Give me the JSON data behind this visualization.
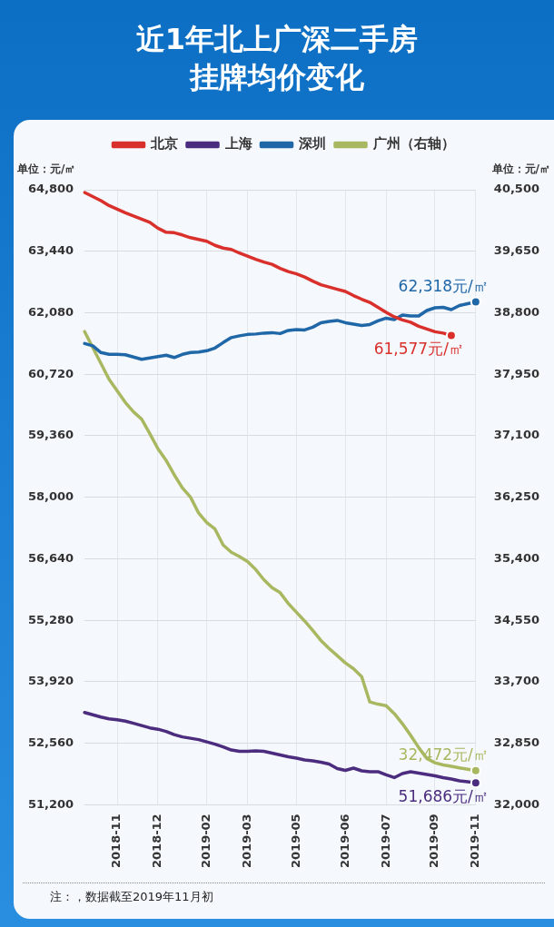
{
  "chart_data": {
    "type": "line",
    "title": "近1年北上广深二手房挂牌均价变化",
    "ylabel": "单位：元/㎡",
    "y2label": "单位：元/㎡",
    "categories": [
      null,
      null,
      null,
      null,
      "2018-11",
      null,
      null,
      null,
      null,
      "2018-12",
      null,
      null,
      null,
      null,
      null,
      "2019-02",
      null,
      null,
      null,
      null,
      "2019-03",
      null,
      null,
      null,
      null,
      null,
      "2019-05",
      null,
      null,
      null,
      null,
      null,
      "2019-06",
      null,
      null,
      null,
      null,
      "2019-07",
      null,
      null,
      null,
      null,
      null,
      "2019-09",
      null,
      null,
      null,
      null,
      "2019-11"
    ],
    "series": [
      {
        "name": "北京",
        "color": "#d9302c",
        "values": [
          64740,
          64650,
          64560,
          64450,
          64370,
          64290,
          64220,
          64150,
          64080,
          63950,
          63860,
          63850,
          63800,
          63740,
          63700,
          63660,
          63570,
          63510,
          63480,
          63400,
          63330,
          63260,
          63200,
          63150,
          63060,
          62990,
          62940,
          62870,
          62780,
          62700,
          62650,
          62600,
          62550,
          62460,
          62380,
          62310,
          62200,
          62090,
          61990,
          61920,
          61870,
          61780,
          61720,
          61660,
          61630,
          61577,
          null,
          null,
          null
        ],
        "value_labels": [
          null,
          null,
          null,
          null,
          null,
          null,
          null,
          null,
          null,
          null,
          null,
          null,
          null,
          null,
          null,
          null,
          null,
          null,
          null,
          null,
          null,
          null,
          null,
          null,
          null,
          null,
          null,
          null,
          null,
          null,
          null,
          null,
          null,
          null,
          null,
          null,
          null,
          null,
          null,
          null,
          null,
          null,
          null,
          null,
          null,
          "61,577元/㎡",
          null,
          null,
          null
        ]
      },
      {
        "name": "上海",
        "color": "#4b2c7f",
        "values": [
          53240,
          53190,
          53140,
          53100,
          53080,
          53050,
          53000,
          52950,
          52900,
          52870,
          52820,
          52750,
          52700,
          52670,
          52640,
          52590,
          52540,
          52480,
          52410,
          52380,
          52380,
          52390,
          52380,
          52340,
          52300,
          52260,
          52230,
          52190,
          52170,
          52140,
          52100,
          52000,
          51960,
          52010,
          51950,
          51930,
          51930,
          51860,
          51800,
          51890,
          51930,
          51900,
          51870,
          51840,
          51800,
          51770,
          51730,
          51710,
          51686
        ],
        "value_labels": [
          null,
          null,
          null,
          null,
          null,
          null,
          null,
          null,
          null,
          null,
          null,
          null,
          null,
          null,
          null,
          null,
          null,
          null,
          null,
          null,
          null,
          null,
          null,
          null,
          null,
          null,
          null,
          null,
          null,
          null,
          null,
          null,
          null,
          null,
          null,
          null,
          null,
          null,
          null,
          null,
          null,
          null,
          null,
          null,
          null,
          null,
          null,
          null,
          "51,686元/㎡"
        ]
      },
      {
        "name": "深圳",
        "color": "#2067a8",
        "values": [
          61400,
          61350,
          61200,
          61160,
          61160,
          61150,
          61100,
          61050,
          61080,
          61110,
          61140,
          61090,
          61160,
          61200,
          61210,
          61240,
          61300,
          61420,
          61530,
          61570,
          61600,
          61610,
          61630,
          61640,
          61620,
          61690,
          61710,
          61700,
          61760,
          61860,
          61890,
          61910,
          61860,
          61830,
          61800,
          61820,
          61900,
          61960,
          61930,
          62030,
          62010,
          62010,
          62130,
          62190,
          62200,
          62150,
          62240,
          62280,
          62318
        ],
        "value_labels": [
          null,
          null,
          null,
          null,
          null,
          null,
          null,
          null,
          null,
          null,
          null,
          null,
          null,
          null,
          null,
          null,
          null,
          null,
          null,
          null,
          null,
          null,
          null,
          null,
          null,
          null,
          null,
          null,
          null,
          null,
          null,
          null,
          null,
          null,
          null,
          null,
          null,
          null,
          null,
          null,
          null,
          null,
          null,
          null,
          null,
          null,
          null,
          null,
          "62,318元/㎡"
        ]
      },
      {
        "name": "广州（右轴）",
        "color": "#a8b860",
        "axis": "y2",
        "values": [
          38540,
          38320,
          38100,
          37880,
          37720,
          37560,
          37430,
          37330,
          37130,
          36920,
          36760,
          36560,
          36380,
          36250,
          36030,
          35900,
          35810,
          35590,
          35490,
          35430,
          35360,
          35250,
          35110,
          35000,
          34930,
          34780,
          34660,
          34540,
          34410,
          34270,
          34160,
          34060,
          33960,
          33880,
          33770,
          33420,
          33390,
          33370,
          33260,
          33120,
          32960,
          32790,
          32640,
          32580,
          32550,
          32530,
          32510,
          32490,
          32472
        ],
        "value_labels": [
          null,
          null,
          null,
          null,
          null,
          null,
          null,
          null,
          null,
          null,
          null,
          null,
          null,
          null,
          null,
          null,
          null,
          null,
          null,
          null,
          null,
          null,
          null,
          null,
          null,
          null,
          null,
          null,
          null,
          null,
          null,
          null,
          null,
          null,
          null,
          null,
          null,
          null,
          null,
          null,
          null,
          null,
          null,
          null,
          null,
          null,
          null,
          null,
          "32,472元/㎡"
        ]
      }
    ],
    "ylim": [
      51200,
      64800
    ],
    "yticks": [
      {
        "value": 51200,
        "label": "51,200"
      },
      {
        "value": 52560,
        "label": "52,560"
      },
      {
        "value": 53920,
        "label": "53,920"
      },
      {
        "value": 55280,
        "label": "55,280"
      },
      {
        "value": 56640,
        "label": "56,640"
      },
      {
        "value": 58000,
        "label": "58,000"
      },
      {
        "value": 59360,
        "label": "59,360"
      },
      {
        "value": 60720,
        "label": "60,720"
      },
      {
        "value": 62080,
        "label": "62,080"
      },
      {
        "value": 63440,
        "label": "63,440"
      },
      {
        "value": 64800,
        "label": "64,800"
      }
    ],
    "y2lim": [
      32000,
      40500
    ],
    "y2ticks": [
      {
        "value": 32000,
        "label": "32,000"
      },
      {
        "value": 32850,
        "label": "32,850"
      },
      {
        "value": 33700,
        "label": "33,700"
      },
      {
        "value": 34550,
        "label": "34,550"
      },
      {
        "value": 35400,
        "label": "35,400"
      },
      {
        "value": 36250,
        "label": "36,250"
      },
      {
        "value": 37100,
        "label": "37,100"
      },
      {
        "value": 37950,
        "label": "37,950"
      },
      {
        "value": 38800,
        "label": "38,800"
      },
      {
        "value": 39650,
        "label": "39,650"
      },
      {
        "value": 40500,
        "label": "40,500"
      }
    ],
    "grid": true,
    "legend": "top",
    "annotations": [
      "注：，数据截至2019年11月初"
    ]
  }
}
